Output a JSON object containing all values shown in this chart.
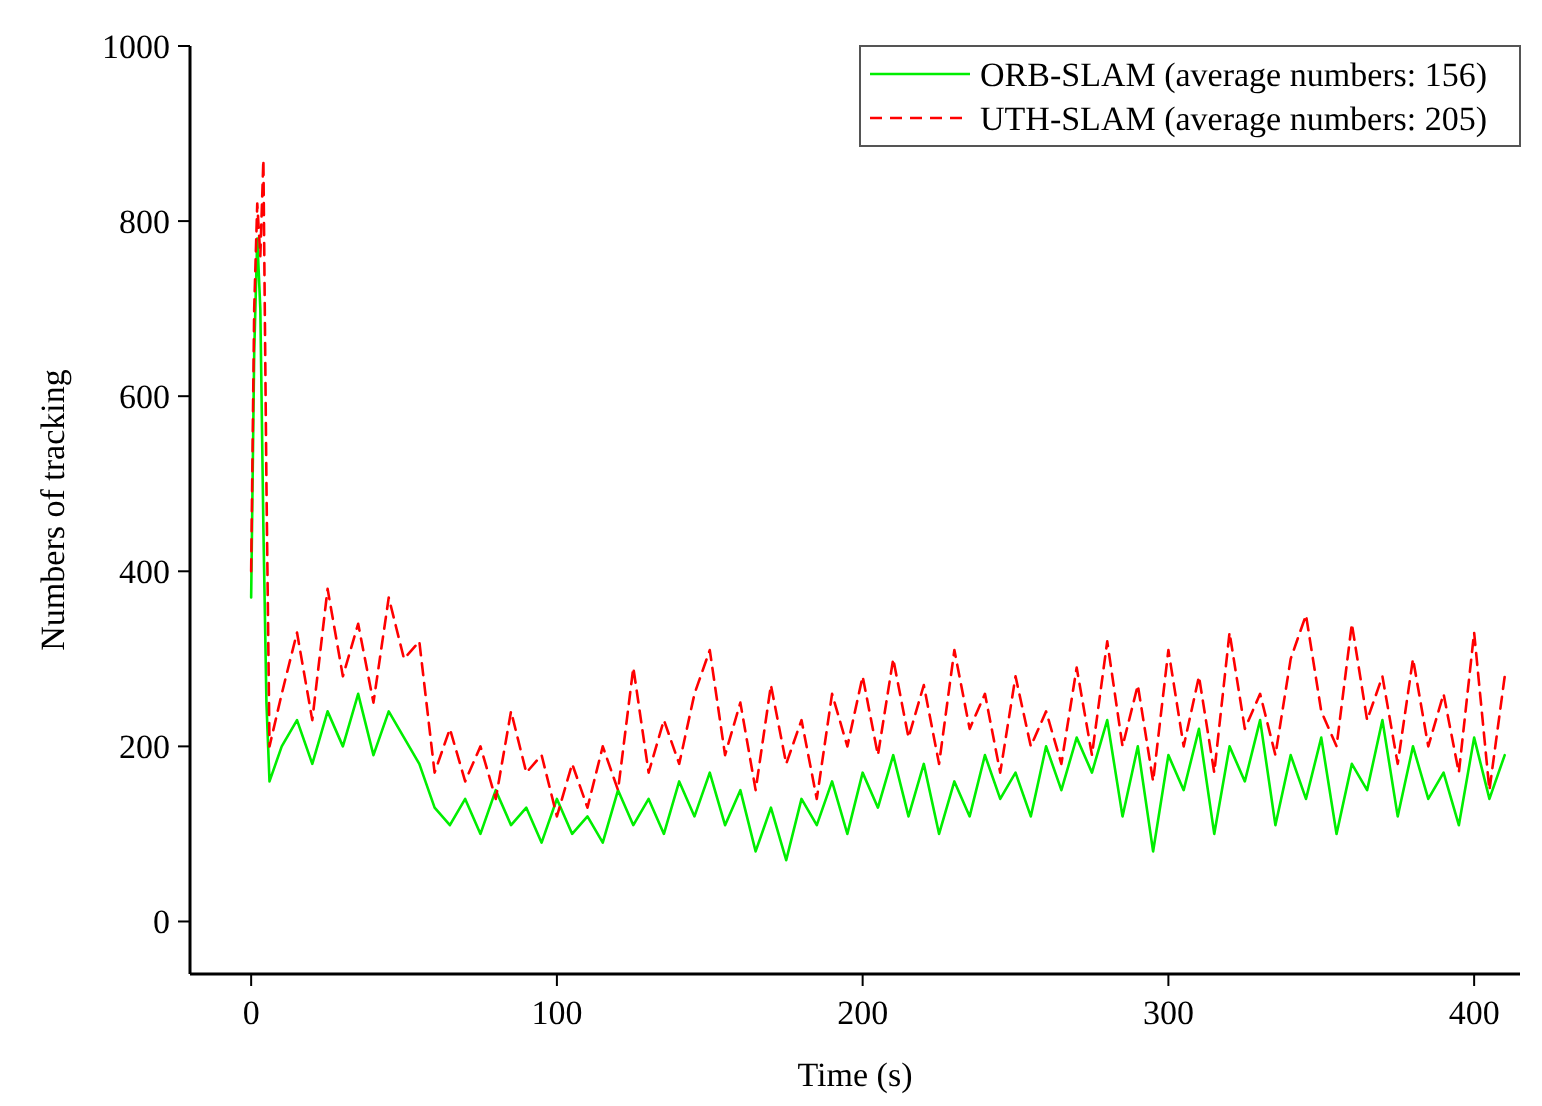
{
  "chart_data": {
    "type": "line",
    "xlabel": "Time (s)",
    "ylabel": "Numbers of tracking",
    "xlim": [
      -20,
      415
    ],
    "xticks": [
      0,
      100,
      200,
      300,
      400
    ],
    "ylim": [
      -60,
      1000
    ],
    "yticks": [
      0,
      200,
      400,
      600,
      800,
      1000
    ],
    "grid": false,
    "legend": "top right",
    "marker": "none",
    "x": [
      0,
      1,
      2,
      3,
      4,
      5,
      6,
      10,
      15,
      20,
      25,
      30,
      35,
      40,
      45,
      50,
      55,
      60,
      65,
      70,
      75,
      80,
      85,
      90,
      95,
      100,
      105,
      110,
      115,
      120,
      125,
      130,
      135,
      140,
      145,
      150,
      155,
      160,
      165,
      170,
      175,
      180,
      185,
      190,
      195,
      200,
      205,
      210,
      215,
      220,
      225,
      230,
      235,
      240,
      245,
      250,
      255,
      260,
      265,
      270,
      275,
      280,
      285,
      290,
      295,
      300,
      305,
      310,
      315,
      320,
      325,
      330,
      335,
      340,
      345,
      350,
      355,
      360,
      365,
      370,
      375,
      380,
      385,
      390,
      395,
      400,
      405,
      410
    ],
    "series": [
      {
        "name": "ORB-SLAM (average numbers: 156)",
        "color": "#00ee00",
        "line_style": "solid",
        "values": [
          370,
          650,
          780,
          700,
          450,
          250,
          160,
          200,
          230,
          180,
          240,
          200,
          260,
          190,
          240,
          210,
          180,
          130,
          110,
          140,
          100,
          150,
          110,
          130,
          90,
          140,
          100,
          120,
          90,
          150,
          110,
          140,
          100,
          160,
          120,
          170,
          110,
          150,
          80,
          130,
          70,
          140,
          110,
          160,
          100,
          170,
          130,
          190,
          120,
          180,
          100,
          160,
          120,
          190,
          140,
          170,
          120,
          200,
          150,
          210,
          170,
          230,
          120,
          200,
          80,
          190,
          150,
          220,
          100,
          200,
          160,
          230,
          110,
          190,
          140,
          210,
          100,
          180,
          150,
          230,
          120,
          200,
          140,
          170,
          110,
          210,
          140,
          190
        ]
      },
      {
        "name": "UTH-SLAM (average numbers: 205)",
        "color": "#ff0000",
        "line_style": "dashed",
        "values": [
          400,
          700,
          820,
          760,
          870,
          500,
          200,
          260,
          330,
          230,
          380,
          280,
          340,
          250,
          370,
          300,
          320,
          170,
          220,
          160,
          200,
          140,
          240,
          170,
          190,
          120,
          180,
          130,
          200,
          150,
          290,
          170,
          230,
          180,
          260,
          310,
          190,
          250,
          150,
          270,
          180,
          230,
          140,
          260,
          200,
          280,
          190,
          300,
          210,
          270,
          180,
          310,
          220,
          260,
          170,
          280,
          200,
          240,
          180,
          290,
          190,
          320,
          200,
          270,
          160,
          310,
          200,
          280,
          170,
          330,
          220,
          260,
          190,
          300,
          350,
          240,
          200,
          340,
          230,
          280,
          180,
          300,
          200,
          260,
          170,
          330,
          150,
          280
        ]
      }
    ]
  }
}
